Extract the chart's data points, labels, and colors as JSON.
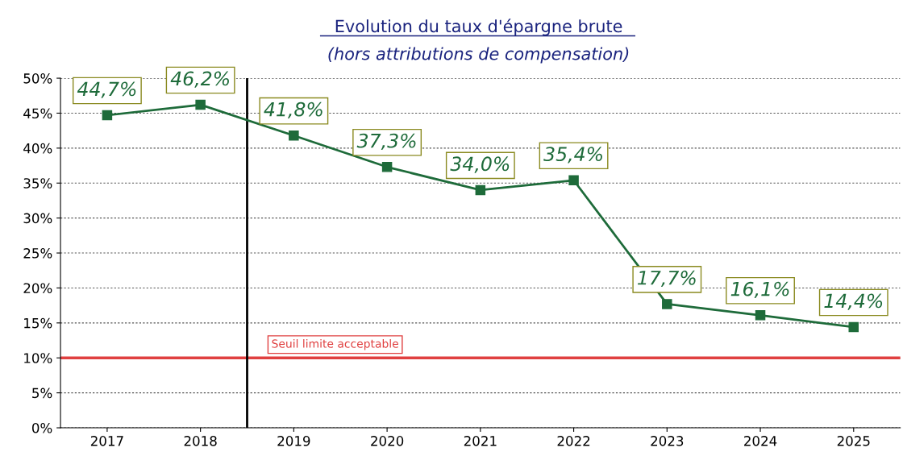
{
  "chart_data": {
    "type": "line",
    "title": "Evolution du taux d'épargne brute",
    "subtitle": "(hors attributions de compensation)",
    "x": [
      2017,
      2018,
      2019,
      2020,
      2021,
      2022,
      2023,
      2024,
      2025
    ],
    "series": [
      {
        "color": "#1e6b3a",
        "values": [
          44.7,
          46.2,
          41.8,
          37.3,
          34.0,
          35.4,
          17.7,
          16.1,
          14.4
        ],
        "value_labels": [
          "44,7%",
          "46,2%",
          "41,8%",
          "37,3%",
          "34,0%",
          "35,4%",
          "17,7%",
          "16,1%",
          "14,4%"
        ]
      }
    ],
    "xlim": [
      2016.5,
      2025.5
    ],
    "xticks": [
      2017,
      2018,
      2019,
      2020,
      2021,
      2022,
      2023,
      2024,
      2025
    ],
    "ylim": [
      0,
      50
    ],
    "yticks": [
      {
        "value": 0,
        "label": "0%"
      },
      {
        "value": 5,
        "label": "5%"
      },
      {
        "value": 10,
        "label": "10%"
      },
      {
        "value": 15,
        "label": "15%"
      },
      {
        "value": 20,
        "label": "20%"
      },
      {
        "value": 25,
        "label": "25%"
      },
      {
        "value": 30,
        "label": "30%"
      },
      {
        "value": 35,
        "label": "35%"
      },
      {
        "value": 40,
        "label": "40%"
      },
      {
        "value": 45,
        "label": "45%"
      },
      {
        "value": 50,
        "label": "50%"
      }
    ],
    "grid": "y",
    "marker": "square",
    "line_style": "solid",
    "legend": false,
    "ref_lines": [
      {
        "axis": "y",
        "value": 10,
        "label": "Seuil limite acceptable",
        "color": "#e04040"
      },
      {
        "axis": "x",
        "value": 2018.5,
        "color": "#000000"
      }
    ]
  }
}
